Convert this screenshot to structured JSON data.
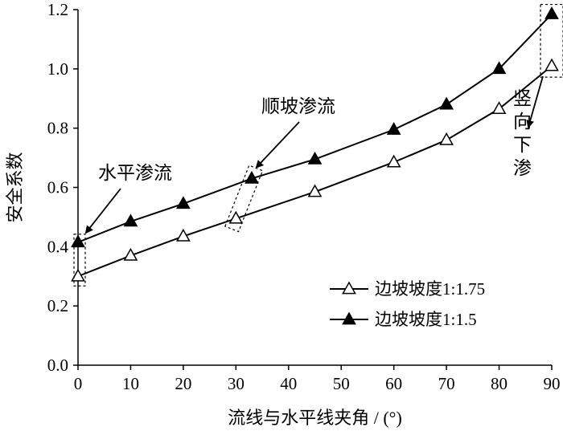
{
  "chart_data": {
    "type": "line",
    "xlabel": "流线与水平线夹角 / (°)",
    "ylabel": "安全系数",
    "xlim": [
      0,
      90
    ],
    "ylim": [
      0.0,
      1.2
    ],
    "xticks": [
      "0",
      "10",
      "20",
      "30",
      "40",
      "50",
      "60",
      "70",
      "80",
      "90"
    ],
    "yticks": [
      "0.0",
      "0.2",
      "0.4",
      "0.6",
      "0.8",
      "1.0",
      "1.2"
    ],
    "grid": false,
    "legend_position": "bottom-right",
    "series": [
      {
        "name": "边坡坡度1:1.75",
        "marker": "open-triangle",
        "color": "#000000",
        "x": [
          0,
          10,
          20,
          30,
          45,
          60,
          70,
          80,
          90
        ],
        "y": [
          0.3,
          0.37,
          0.435,
          0.495,
          0.585,
          0.685,
          0.76,
          0.865,
          1.01
        ]
      },
      {
        "name": "边坡坡度1:1.5",
        "marker": "filled-triangle",
        "color": "#000000",
        "x": [
          0,
          10,
          20,
          33,
          45,
          60,
          70,
          80,
          90
        ],
        "y": [
          0.415,
          0.485,
          0.545,
          0.63,
          0.695,
          0.795,
          0.88,
          1.0,
          1.185
        ]
      }
    ],
    "annotations": [
      {
        "text": "水平渗流",
        "orientation": "horizontal"
      },
      {
        "text": "顺坡渗流",
        "orientation": "horizontal"
      },
      {
        "text": "竖向下渗",
        "orientation": "vertical"
      }
    ]
  }
}
